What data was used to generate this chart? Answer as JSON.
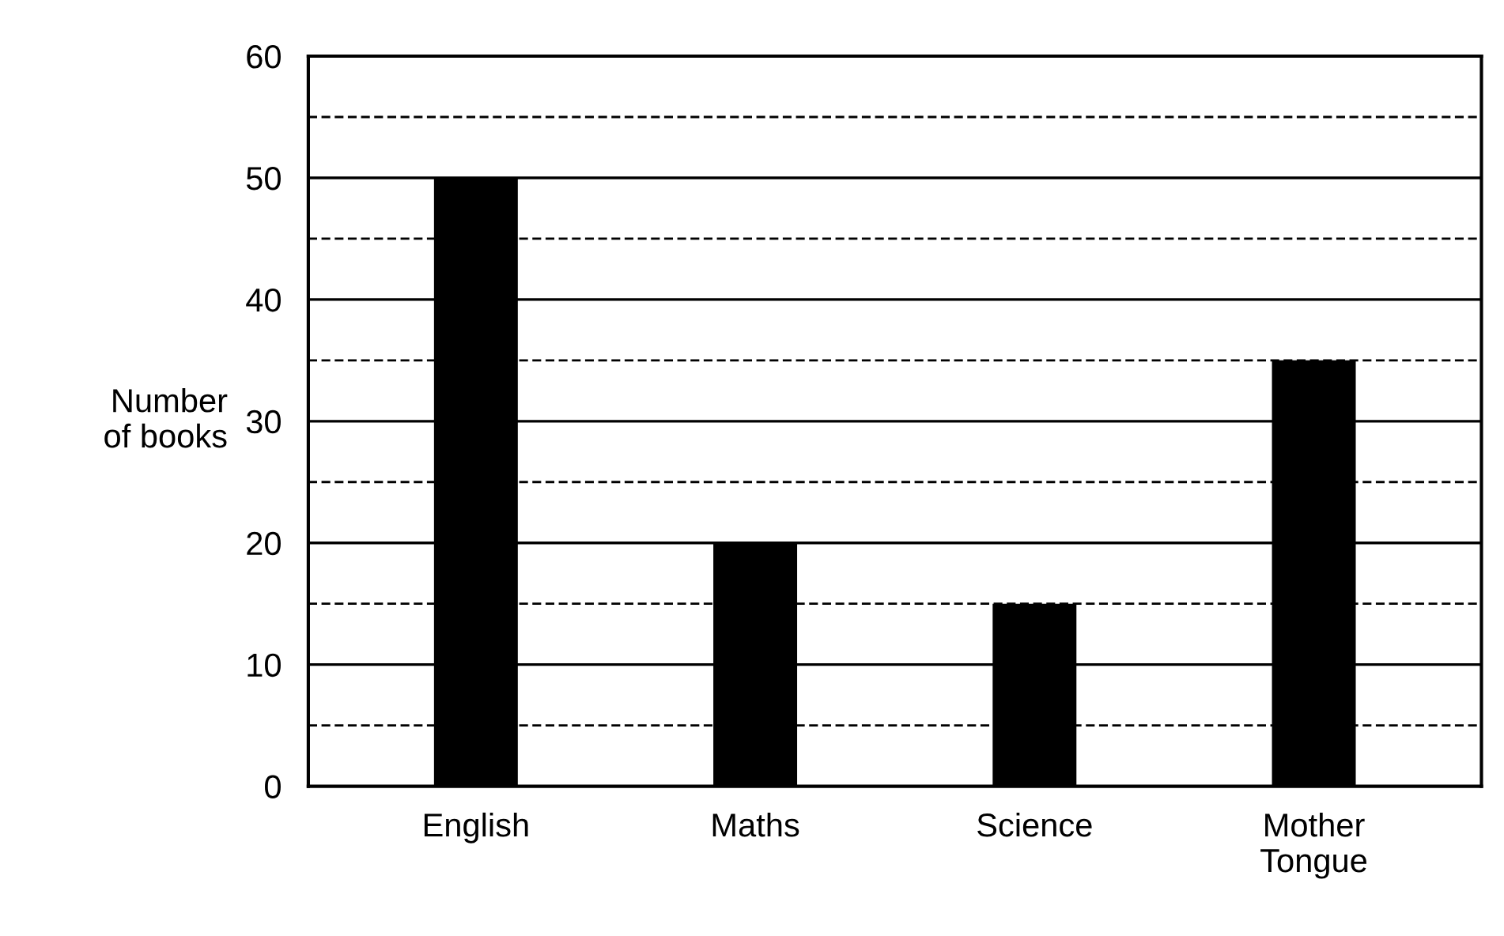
{
  "chart_data": {
    "type": "bar",
    "ylabel": "Number\nof books",
    "categories": [
      "English",
      "Maths",
      "Science",
      "Mother\nTongue"
    ],
    "values": [
      50,
      20,
      15,
      35
    ],
    "color": "#000000",
    "ylim": [
      0,
      60
    ],
    "yticks": [
      0,
      {
        "value": 5,
        "label": null
      },
      10,
      {
        "value": 15,
        "label": null
      },
      20,
      {
        "value": 25,
        "label": null
      },
      30,
      {
        "value": 35,
        "label": null
      },
      40,
      {
        "value": 45,
        "label": null
      },
      50,
      {
        "value": 55,
        "label": null
      },
      60
    ],
    "grid": "y"
  }
}
